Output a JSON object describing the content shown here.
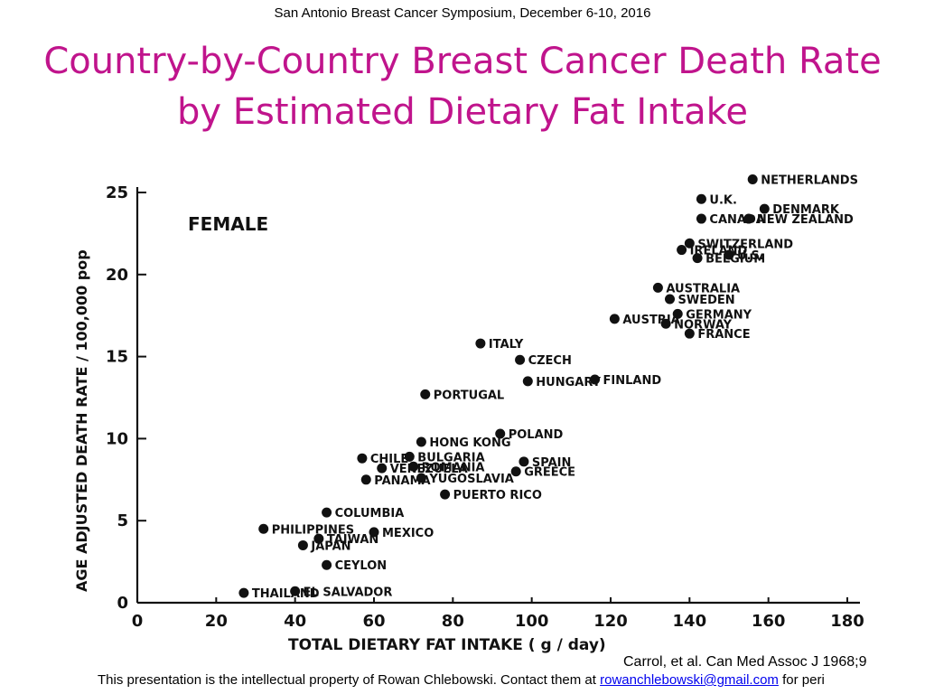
{
  "header": "San Antonio Breast Cancer Symposium, December 6-10, 2016",
  "title_line1": "Country-by-Country Breast Cancer Death Rate",
  "title_line2": "by Estimated Dietary Fat Intake",
  "citation": "Carrol, et al.  Can Med Assoc J 1968;9",
  "footer": {
    "text_before": "This presentation is the intellectual property of Rowan Chlebowski.  Contact them at ",
    "email": "rowanchlebowski@gmail.com",
    "text_after": " for peri"
  },
  "colors": {
    "title": "#c0148c",
    "marker": "#111111",
    "link": "#0000ee"
  },
  "chart_data": {
    "type": "scatter",
    "panel_label": "FEMALE",
    "xlabel": "TOTAL DIETARY FAT INTAKE ( g / day)",
    "ylabel": "AGE ADJUSTED DEATH RATE / 100,000 pop",
    "xlim": [
      0,
      180
    ],
    "ylim": [
      0,
      25
    ],
    "xticks": [
      0,
      20,
      40,
      60,
      80,
      100,
      120,
      140,
      160,
      180
    ],
    "yticks": [
      0,
      5,
      10,
      15,
      20,
      25
    ],
    "grid": false,
    "points": [
      {
        "label": "THAILAND",
        "x": 27,
        "y": 0.6
      },
      {
        "label": "EL SALVADOR",
        "x": 40,
        "y": 0.7
      },
      {
        "label": "CEYLON",
        "x": 48,
        "y": 2.3
      },
      {
        "label": "JAPAN",
        "x": 42,
        "y": 3.5
      },
      {
        "label": "TAIWAN",
        "x": 46,
        "y": 3.9
      },
      {
        "label": "PHILIPPINES",
        "x": 32,
        "y": 4.5
      },
      {
        "label": "MEXICO",
        "x": 60,
        "y": 4.3
      },
      {
        "label": "COLUMBIA",
        "x": 48,
        "y": 5.5
      },
      {
        "label": "PANAMA",
        "x": 58,
        "y": 7.5
      },
      {
        "label": "VENEZUELA",
        "x": 62,
        "y": 8.2
      },
      {
        "label": "CHILE",
        "x": 57,
        "y": 8.8
      },
      {
        "label": "HONG KONG",
        "x": 72,
        "y": 9.8
      },
      {
        "label": "BULGARIA",
        "x": 69,
        "y": 8.9
      },
      {
        "label": "ROMANIA",
        "x": 70,
        "y": 8.3
      },
      {
        "label": "YUGOSLAVIA",
        "x": 72,
        "y": 7.6
      },
      {
        "label": "PUERTO RICO",
        "x": 78,
        "y": 6.6
      },
      {
        "label": "GREECE",
        "x": 96,
        "y": 8.0
      },
      {
        "label": "SPAIN",
        "x": 98,
        "y": 8.6
      },
      {
        "label": "POLAND",
        "x": 92,
        "y": 10.3
      },
      {
        "label": "PORTUGAL",
        "x": 73,
        "y": 12.7
      },
      {
        "label": "HUNGARY",
        "x": 99,
        "y": 13.5
      },
      {
        "label": "FINLAND",
        "x": 116,
        "y": 13.6
      },
      {
        "label": "CZECH",
        "x": 97,
        "y": 14.8
      },
      {
        "label": "ITALY",
        "x": 87,
        "y": 15.8
      },
      {
        "label": "AUSTRIA",
        "x": 121,
        "y": 17.3
      },
      {
        "label": "NORWAY",
        "x": 134,
        "y": 17.0
      },
      {
        "label": "GERMANY",
        "x": 137,
        "y": 17.6
      },
      {
        "label": "FRANCE",
        "x": 140,
        "y": 16.4
      },
      {
        "label": "SWEDEN",
        "x": 135,
        "y": 18.5
      },
      {
        "label": "AUSTRALIA",
        "x": 132,
        "y": 19.2
      },
      {
        "label": "BELGIUM",
        "x": 142,
        "y": 21.0
      },
      {
        "label": "IRELAND",
        "x": 138,
        "y": 21.5
      },
      {
        "label": "SWITZERLAND",
        "x": 140,
        "y": 21.9
      },
      {
        "label": "U.S.",
        "x": 150,
        "y": 21.2
      },
      {
        "label": "CANADA",
        "x": 143,
        "y": 23.4
      },
      {
        "label": "U.K.",
        "x": 143,
        "y": 24.6
      },
      {
        "label": "NEW ZEALAND",
        "x": 155,
        "y": 23.4
      },
      {
        "label": "DENMARK",
        "x": 159,
        "y": 24.0
      },
      {
        "label": "NETHERLANDS",
        "x": 156,
        "y": 25.8
      }
    ]
  }
}
